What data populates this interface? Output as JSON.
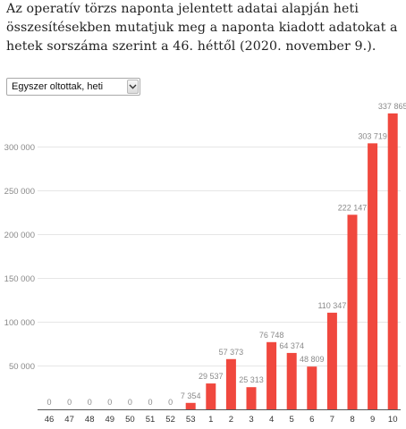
{
  "intro": {
    "text": "Az operatív törzs naponta jelentett adatai alapján heti összesítésekben mutatjuk meg a naponta kiadott adatokat a hetek sorszáma szerint a 46. héttől (2020. november 9.)."
  },
  "selector": {
    "selected": "Egyszer oltottak, heti",
    "icon": "chevron-down-icon"
  },
  "colors": {
    "bar": "#f0483e",
    "grid": "#e6e6e6",
    "axis_text": "#8a8a8a",
    "label_text": "#8a8a8a"
  },
  "chart_data": {
    "type": "bar",
    "categories": [
      "46",
      "47",
      "48",
      "49",
      "50",
      "51",
      "52",
      "53",
      "1",
      "2",
      "3",
      "4",
      "5",
      "6",
      "7",
      "8",
      "9",
      "10"
    ],
    "values": [
      0,
      0,
      0,
      0,
      0,
      0,
      0,
      7354,
      29537,
      57373,
      25313,
      76748,
      64374,
      48809,
      110347,
      222147,
      303719,
      337865
    ],
    "value_labels": [
      "0",
      "0",
      "0",
      "0",
      "0",
      "0",
      "0",
      "7 354",
      "29 537",
      "57 373",
      "25 313",
      "76 748",
      "64 374",
      "48 809",
      "110 347",
      "222 147",
      "303 719",
      "337 865"
    ],
    "y_ticks": [
      50000,
      100000,
      150000,
      200000,
      250000,
      300000
    ],
    "y_tick_labels": [
      "50 000",
      "100 000",
      "150 000",
      "200 000",
      "250 000",
      "300 000"
    ],
    "ylim": [
      0,
      340000
    ],
    "grid": true,
    "title": "",
    "xlabel": "",
    "ylabel": ""
  }
}
